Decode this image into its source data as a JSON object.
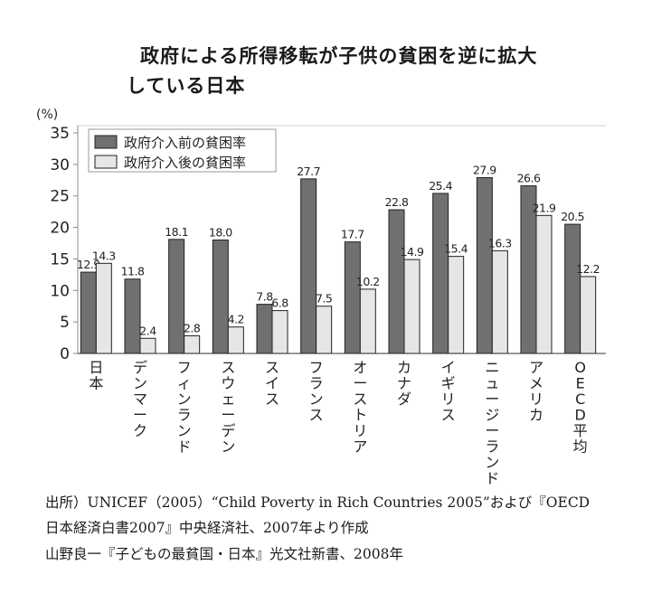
{
  "chart_data": {
    "type": "bar",
    "title": [
      "政府による所得移転が子供の貧困を逆に拡大",
      "している日本"
    ],
    "ylabel": "(%)",
    "ylim": [
      0,
      35
    ],
    "yticks": [
      0,
      5,
      10,
      15,
      20,
      25,
      30,
      35
    ],
    "categories": [
      "日本",
      "デンマーク",
      "フィンランド",
      "スウェーデン",
      "スイス",
      "フランス",
      "オーストリア",
      "カナダ",
      "イギリス",
      "ニュージーランド",
      "アメリカ",
      "OECD平均"
    ],
    "series": [
      {
        "name": "政府介入前の貧困率",
        "color": "#707070",
        "values": [
          12.9,
          11.8,
          18.1,
          18.0,
          7.8,
          27.7,
          17.7,
          22.8,
          25.4,
          27.9,
          26.6,
          20.5
        ]
      },
      {
        "name": "政府介入後の貧困率",
        "color": "#e6e6e6",
        "values": [
          14.3,
          2.4,
          2.8,
          4.2,
          6.8,
          7.5,
          10.2,
          14.9,
          15.4,
          16.3,
          21.9,
          12.2
        ]
      }
    ],
    "legend": "top-left",
    "grid": false
  },
  "source": [
    "出所）UNICEF（2005）“Child Poverty in Rich Countries 2005”および『OECD",
    "日本経済白書2007』中央経済社、2007年より作成",
    "山野良一『子どもの最貧国・日本』光文社新書、2008年"
  ]
}
